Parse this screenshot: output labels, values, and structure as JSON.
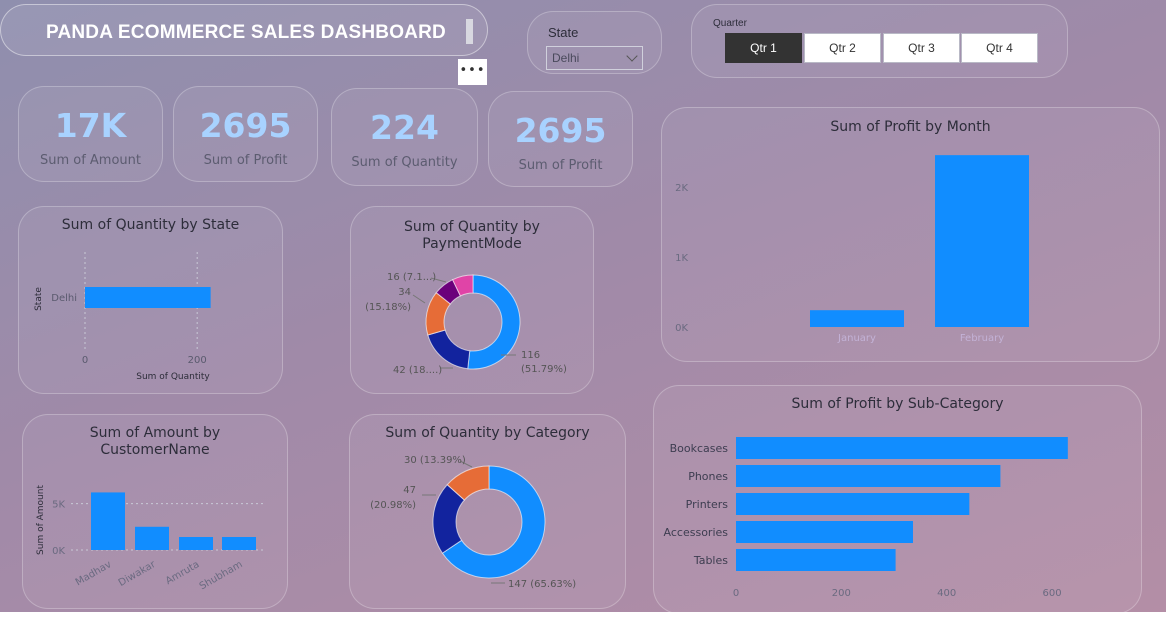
{
  "header": {
    "title": "PANDA ECOMMERCE SALES DASHBOARD",
    "more_label": "•••"
  },
  "slicers": {
    "state": {
      "label": "State",
      "selected": "Delhi"
    },
    "quarter": {
      "label": "Quarter",
      "options": [
        "Qtr 1",
        "Qtr 2",
        "Qtr 3",
        "Qtr 4"
      ],
      "selected": "Qtr 1"
    }
  },
  "kpis": [
    {
      "value": "17K",
      "label": "Sum of Amount"
    },
    {
      "value": "2695",
      "label": "Sum of Profit"
    },
    {
      "value": "224",
      "label": "Sum of Quantity"
    },
    {
      "value": "2695",
      "label": "Sum of Profit"
    }
  ],
  "colors": {
    "primary": "#118dff",
    "dark_blue": "#12239e",
    "orange": "#e66c37",
    "purple": "#6b007b",
    "magenta": "#e044a7"
  },
  "chart_data": [
    {
      "id": "qty_by_state",
      "type": "bar",
      "orientation": "horizontal",
      "title": "Sum of Quantity by State",
      "categories": [
        "Delhi"
      ],
      "values": [
        224
      ],
      "xlabel": "Sum of Quantity",
      "ylabel": "State",
      "x_ticks": [
        "0",
        "200"
      ],
      "xlim": [
        0,
        230
      ],
      "grid": true
    },
    {
      "id": "qty_by_paymentmode",
      "type": "pie",
      "donut": true,
      "title": "Sum of Quantity by PaymentMode",
      "slices": [
        {
          "value": 116,
          "label": "116",
          "pct": "(51.79%)"
        },
        {
          "value": 42,
          "label": "42 (18....)"
        },
        {
          "value": 34,
          "label": "34",
          "pct": "(15.18%)"
        },
        {
          "value": 16,
          "label": "16 (7.1...)"
        },
        {
          "value": 16,
          "label": ""
        }
      ]
    },
    {
      "id": "profit_by_month",
      "type": "bar",
      "title": "Sum of Profit by Month",
      "categories": [
        "January",
        "February"
      ],
      "values": [
        240,
        2455
      ],
      "y_ticks": [
        "0K",
        "1K",
        "2K"
      ],
      "ylim": [
        0,
        2500
      ],
      "grid": false
    },
    {
      "id": "amount_by_customer",
      "type": "bar",
      "title": "Sum of Amount by CustomerName",
      "categories": [
        "Madhav",
        "Diwakar",
        "Amruta",
        "Shubham"
      ],
      "values": [
        6200,
        2500,
        1400,
        1400
      ],
      "ylabel": "Sum of Amount",
      "y_ticks": [
        "0K",
        "5K"
      ],
      "ylim": [
        0,
        7000
      ],
      "grid": true
    },
    {
      "id": "qty_by_category",
      "type": "pie",
      "donut": true,
      "title": "Sum of Quantity by Category",
      "slices": [
        {
          "value": 147,
          "label": "147 (65.63%)"
        },
        {
          "value": 47,
          "label": "47",
          "pct": "(20.98%)"
        },
        {
          "value": 30,
          "label": "30 (13.39%)"
        }
      ]
    },
    {
      "id": "profit_by_subcategory",
      "type": "bar",
      "orientation": "horizontal",
      "title": "Sum of Profit by Sub-Category",
      "categories": [
        "Bookcases",
        "Phones",
        "Printers",
        "Accessories",
        "Tables"
      ],
      "values": [
        630,
        502,
        443,
        336,
        303
      ],
      "x_ticks": [
        "0",
        "200",
        "400",
        "600"
      ],
      "xlim": [
        0,
        655
      ],
      "grid": false
    }
  ]
}
